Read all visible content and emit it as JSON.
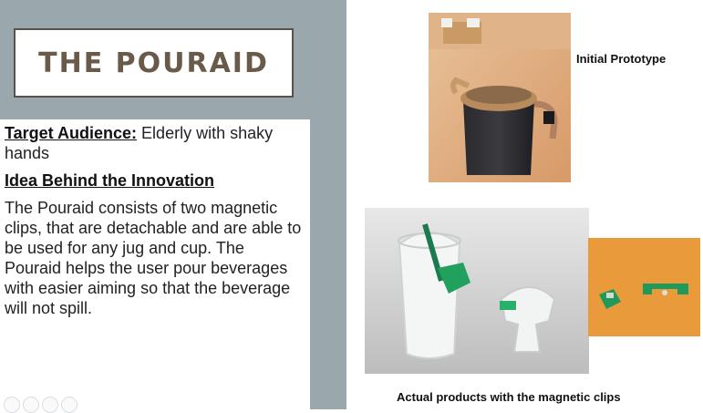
{
  "slide": {
    "title": "THE POURAID",
    "target_audience_label": "Target Audience:",
    "target_audience_text": "Elderly with shaky hands",
    "idea_heading": "Idea Behind the Innovation",
    "idea_body": "The Pouraid consists of two magnetic clips, that are detachable and are able to be used for any jug and cup. The Pouraid helps the user pour beverages with easier aiming so that the beverage will not spill."
  },
  "images": {
    "prototype_caption": "Initial Prototype",
    "products_caption": "Actual products with the magnetic clips"
  },
  "colors": {
    "left_panel": "#9aa8ae",
    "title_text": "#6a5a4a",
    "title_border": "#5a5149",
    "clip_green": "#1f9a5a"
  },
  "icons": [
    "initial-prototype-photo",
    "products-glasses-photo",
    "magnetic-clips-photo"
  ]
}
